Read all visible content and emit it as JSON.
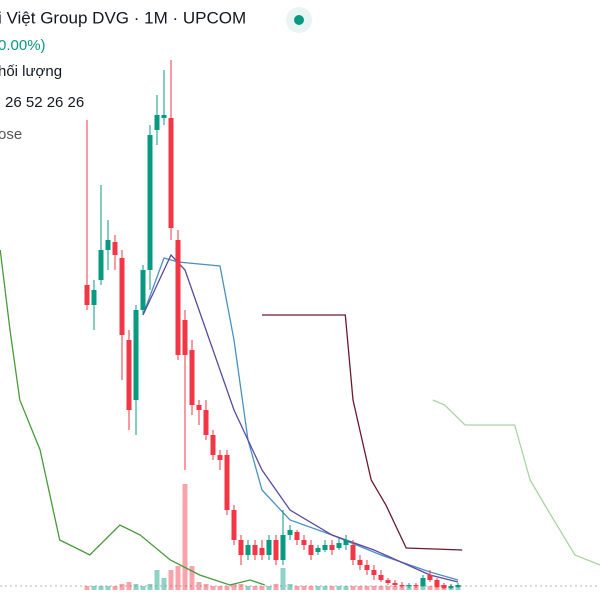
{
  "header": {
    "title": "i Việt Group DVG · 1M · UPCOM",
    "change": "0.00%)",
    "volume_label": "hối lượng",
    "volume_values": "26 52 26 26",
    "legend_label": "ose"
  },
  "chart_data": {
    "type": "candlestick",
    "up_color": "#089981",
    "down_color": "#f23645",
    "xlim": [
      -12.43,
      73.29
    ],
    "ylim": [
      0,
      53
    ],
    "y2lim": [
      0,
      100
    ],
    "open": [
      30.5,
      28.5,
      31,
      34,
      34.8,
      33.2,
      25,
      19,
      28,
      32,
      46,
      47.2,
      47.2,
      35,
      27,
      24,
      18.5,
      18,
      15.5,
      13.5,
      13.5,
      8,
      5,
      3.5,
      4.5,
      4.2,
      3.5,
      5,
      3,
      5.5,
      5.8,
      5,
      4.5,
      3.8,
      4,
      4.5,
      4.2,
      4.5,
      4.5,
      3,
      2.5,
      2,
      1.5,
      1,
      0.7,
      0.5,
      0.4,
      0.5,
      0.4,
      1.5,
      1,
      0.5,
      0.2,
      0.3
    ],
    "high": [
      47,
      31,
      40.5,
      37,
      35.5,
      34,
      26,
      28.5,
      32.5,
      46.5,
      49.5,
      52,
      53,
      36,
      28,
      25,
      19,
      19,
      16,
      14,
      14,
      8.5,
      5.5,
      5,
      5,
      5,
      5.5,
      5.5,
      8,
      6.5,
      6,
      5.5,
      5,
      4.5,
      5,
      5,
      5.2,
      5.5,
      5,
      3.5,
      3,
      2.5,
      2,
      1.2,
      1,
      0.8,
      0.7,
      0.7,
      1.5,
      2,
      1.2,
      0.7,
      0.6,
      0.7
    ],
    "low": [
      28,
      26,
      30.5,
      32,
      32,
      21,
      16,
      15.5,
      27.5,
      30,
      44.5,
      46.5,
      35,
      23,
      12,
      17.5,
      16.5,
      15,
      13,
      12,
      7.5,
      4.5,
      2.5,
      3,
      3,
      3,
      3,
      2.5,
      2.5,
      5,
      4.5,
      4,
      3,
      3.5,
      3.8,
      3.5,
      4,
      4,
      2.5,
      2,
      1.5,
      1,
      0.8,
      0.5,
      0.3,
      0.2,
      0.2,
      0.2,
      0.3,
      0.8,
      0.2,
      0.1,
      0.1,
      0.2
    ],
    "close": [
      28.5,
      30,
      34,
      35,
      33.5,
      25.5,
      18,
      28,
      32,
      45.5,
      47.5,
      47.5,
      36.2,
      23.5,
      23.5,
      18.5,
      18,
      15.5,
      13.5,
      13,
      8,
      5,
      3.5,
      4.5,
      3.5,
      3.5,
      5,
      3,
      5.5,
      6,
      5,
      4.5,
      3.5,
      4.2,
      4.5,
      4,
      4.7,
      5,
      3,
      2.5,
      2,
      1.5,
      1,
      0.7,
      0.5,
      0.4,
      0.5,
      0.4,
      1.2,
      1,
      0.3,
      0.2,
      0.4,
      0.5
    ],
    "volume": [
      2,
      2,
      2,
      2,
      2,
      3,
      4,
      3,
      2,
      3,
      10,
      6,
      10,
      12,
      53,
      12,
      4,
      3,
      2,
      2,
      2,
      3,
      3,
      2,
      2,
      2,
      2,
      3,
      11,
      3,
      2,
      2,
      2,
      2,
      2,
      2,
      2,
      2,
      2,
      2,
      2,
      2,
      2,
      2,
      2,
      2,
      2,
      2,
      2,
      2,
      2,
      2,
      2,
      2
    ],
    "lines": [
      {
        "color": "#4a90c2",
        "x": [
          8,
          11,
          13,
          19,
          21,
          23,
          25,
          29,
          35,
          42,
          49,
          53
        ],
        "values": [
          27.5,
          33.2,
          32.8,
          32.4,
          25,
          15,
          10,
          7,
          5.5,
          3.5,
          1.8,
          1
        ]
      },
      {
        "color": "#5c4a9c",
        "x": [
          8,
          10,
          12,
          14,
          17,
          21,
          25,
          29,
          35,
          41,
          49,
          53
        ],
        "values": [
          27.5,
          30.5,
          33.5,
          32,
          26,
          18,
          12,
          8,
          5.5,
          4,
          1.5,
          0.8
        ]
      },
      {
        "color": "#6b1a2a",
        "x": [
          25,
          36.9,
          38,
          40.6,
          42.7,
          45.6,
          53.6
        ],
        "values": [
          27.5,
          27.5,
          19,
          11,
          8.5,
          4.2,
          4
        ]
      },
      {
        "color": "#4a9a3a",
        "x": [
          -12.4,
          -11,
          -9.6,
          -6.7,
          -3.9,
          -1,
          0.4,
          4.7,
          7.6,
          11.9,
          16.1,
          20.4,
          23.3,
          25.4
        ],
        "values": [
          34,
          26,
          19,
          14,
          5,
          4,
          3.5,
          6.5,
          5.5,
          3,
          1.5,
          0.5,
          1,
          0.5
        ]
      },
      {
        "color": "#a8d5a0",
        "x": [
          49.4,
          51.1,
          54,
          61.1,
          63.3,
          65.4,
          69.7,
          73.3
        ],
        "values": [
          19,
          18.5,
          16.5,
          16.5,
          11,
          8.5,
          3.5,
          2.5
        ]
      }
    ]
  }
}
